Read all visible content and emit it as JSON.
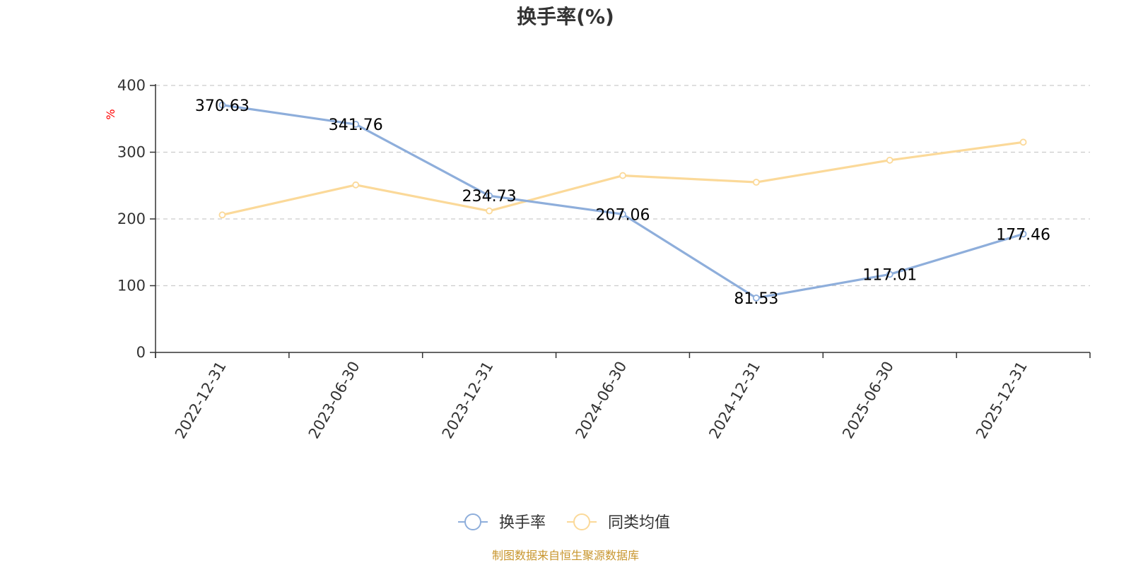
{
  "chart_data": {
    "type": "line",
    "title": "换手率(%)",
    "ylabel": "%",
    "xlabel": "",
    "ylim": [
      0,
      400
    ],
    "yticks": [
      0,
      100,
      200,
      300,
      400
    ],
    "grid": true,
    "legend_position": "bottom-center",
    "categories": [
      "2022-12-31",
      "2023-06-30",
      "2023-12-31",
      "2024-06-30",
      "2024-12-31",
      "2025-06-30",
      "2025-12-31"
    ],
    "series": [
      {
        "name": "换手率",
        "color": "#8eaedb",
        "values": [
          370.63,
          341.76,
          234.73,
          207.06,
          81.53,
          117.01,
          177.46
        ],
        "labels": [
          "370.63",
          "341.76",
          "234.73",
          "207.06",
          "81.53",
          "117.01",
          "177.46"
        ]
      },
      {
        "name": "同类均值",
        "color": "#fbd999",
        "values": [
          206,
          251,
          212,
          265,
          255,
          288,
          315
        ]
      }
    ],
    "source": "制图数据来自恒生聚源数据库",
    "ylabel_color": "#ff0000",
    "source_color": "#c8962e"
  }
}
